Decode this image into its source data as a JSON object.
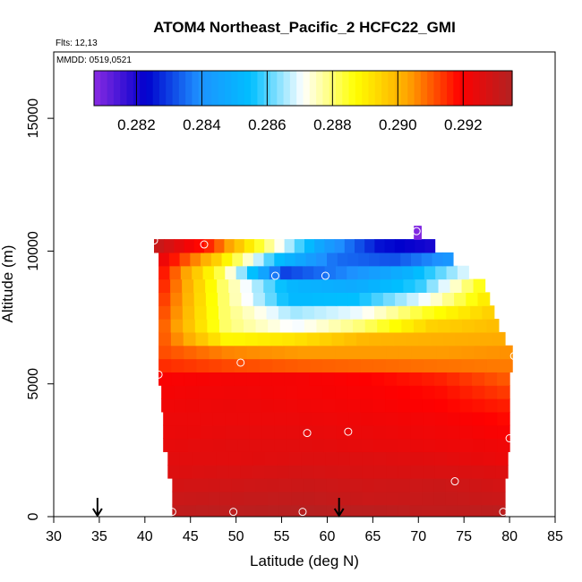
{
  "chart_data": {
    "type": "heatmap",
    "title": "ATOM4 Northeast_Pacific_2 HCFC22_GMI",
    "flights_label": "Flts: 12,13",
    "date_label": "MMDD: 0519,0521",
    "xlabel": "Latitude (deg N)",
    "ylabel": "Altitude (m)",
    "xlim": [
      30,
      85
    ],
    "ylim": [
      0,
      17500
    ],
    "x_ticks": [
      "30",
      "35",
      "40",
      "45",
      "50",
      "55",
      "60",
      "65",
      "70",
      "75",
      "80",
      "85"
    ],
    "y_ticks": [
      "0",
      "5000",
      "10000",
      "15000"
    ],
    "colorbar": {
      "range": [
        0.2807,
        0.2935
      ],
      "ticks": [
        "0.282",
        "0.284",
        "0.286",
        "0.288",
        "0.290",
        "0.292"
      ],
      "colors": [
        "#8a2be2",
        "#0000cd",
        "#1e90ff",
        "#00bfff",
        "#ffffff",
        "#ffff00",
        "#ffa500",
        "#ff0000",
        "#b22222"
      ]
    },
    "grid": false,
    "rows": [
      {
        "alt": 200,
        "lat_start": 43.0,
        "lat_end": 79.5,
        "values": [
          0.2932,
          0.2933,
          0.2934,
          0.2933,
          0.2932,
          0.2933
        ]
      },
      {
        "alt": 700,
        "lat_start": 43.0,
        "lat_end": 79.5,
        "values": [
          0.293,
          0.2931,
          0.2932,
          0.293,
          0.2931,
          0.293
        ]
      },
      {
        "alt": 1200,
        "lat_start": 43.0,
        "lat_end": 79.5,
        "values": [
          0.2928,
          0.2929,
          0.293,
          0.2929,
          0.293,
          0.2928
        ]
      },
      {
        "alt": 1700,
        "lat_start": 42.5,
        "lat_end": 79.8,
        "values": [
          0.2926,
          0.2927,
          0.2928,
          0.2927,
          0.2927,
          0.2926
        ]
      },
      {
        "alt": 2200,
        "lat_start": 42.5,
        "lat_end": 79.8,
        "values": [
          0.2925,
          0.2925,
          0.2926,
          0.2926,
          0.2925,
          0.2923
        ]
      },
      {
        "alt": 2700,
        "lat_start": 42.0,
        "lat_end": 80.0,
        "values": [
          0.2924,
          0.2925,
          0.2925,
          0.2924,
          0.2923,
          0.2922
        ]
      },
      {
        "alt": 3200,
        "lat_start": 42.0,
        "lat_end": 80.0,
        "values": [
          0.2923,
          0.2924,
          0.2924,
          0.2923,
          0.2922,
          0.292
        ]
      },
      {
        "alt": 3700,
        "lat_start": 42.0,
        "lat_end": 80.0,
        "values": [
          0.2923,
          0.2923,
          0.2923,
          0.2922,
          0.2921,
          0.2918
        ]
      },
      {
        "alt": 4200,
        "lat_start": 41.8,
        "lat_end": 80.0,
        "values": [
          0.2922,
          0.2923,
          0.2922,
          0.2921,
          0.2919,
          0.2916
        ]
      },
      {
        "alt": 4700,
        "lat_start": 41.8,
        "lat_end": 80.0,
        "values": [
          0.2921,
          0.2922,
          0.2921,
          0.292,
          0.2918,
          0.2913
        ]
      },
      {
        "alt": 5200,
        "lat_start": 41.5,
        "lat_end": 80.0,
        "values": [
          0.292,
          0.2921,
          0.2921,
          0.2919,
          0.2916,
          0.291
        ]
      },
      {
        "alt": 5700,
        "lat_start": 41.5,
        "lat_end": 80.3,
        "values": [
          0.2915,
          0.2912,
          0.291,
          0.2909,
          0.2908,
          0.2907
        ]
      },
      {
        "alt": 6200,
        "lat_start": 41.5,
        "lat_end": 80.3,
        "values": [
          0.2912,
          0.2906,
          0.2904,
          0.2904,
          0.2904,
          0.2905
        ]
      },
      {
        "alt": 6700,
        "lat_start": 41.5,
        "lat_end": 79.5,
        "values": [
          0.2912,
          0.2888,
          0.2892,
          0.29,
          0.2901,
          0.2902
        ]
      },
      {
        "alt": 7200,
        "lat_start": 41.5,
        "lat_end": 78.8,
        "values": [
          0.2912,
          0.288,
          0.287,
          0.288,
          0.2895,
          0.2899
        ]
      },
      {
        "alt": 7700,
        "lat_start": 41.5,
        "lat_end": 78.3,
        "values": [
          0.2914,
          0.288,
          0.2865,
          0.287,
          0.2885,
          0.2896
        ]
      },
      {
        "alt": 8200,
        "lat_start": 41.5,
        "lat_end": 77.8,
        "values": [
          0.2916,
          0.288,
          0.2853,
          0.2855,
          0.287,
          0.2892
        ]
      },
      {
        "alt": 8700,
        "lat_start": 41.5,
        "lat_end": 77.3,
        "values": [
          0.2918,
          0.288,
          0.2852,
          0.2848,
          0.2858,
          0.2888
        ]
      },
      {
        "alt": 9200,
        "lat_start": 41.5,
        "lat_end": 75.5,
        "values": [
          0.292,
          0.2882,
          0.283,
          0.2838,
          0.285,
          0.287
        ]
      },
      {
        "alt": 9700,
        "lat_start": 41.5,
        "lat_end": 73.8,
        "values": [
          0.2925,
          0.2895,
          0.2855,
          0.2835,
          0.2832,
          0.2842
        ]
      },
      {
        "alt": 10200,
        "lat_start": 41.0,
        "lat_end": 71.8,
        "values": [
          0.2932,
          0.2915,
          0.288,
          0.2845,
          0.2825,
          0.282
        ]
      },
      {
        "alt": 10700,
        "lat_start": 69.5,
        "lat_end": 70.3,
        "values": [
          0.2808
        ]
      }
    ],
    "points": [
      {
        "lat": 41.0,
        "alt": 10400
      },
      {
        "lat": 46.5,
        "alt": 10250
      },
      {
        "lat": 54.3,
        "alt": 9070
      },
      {
        "lat": 59.8,
        "alt": 9070
      },
      {
        "lat": 69.8,
        "alt": 10750
      },
      {
        "lat": 80.5,
        "alt": 6050
      },
      {
        "lat": 50.5,
        "alt": 5800
      },
      {
        "lat": 41.5,
        "alt": 5350
      },
      {
        "lat": 57.8,
        "alt": 3150
      },
      {
        "lat": 62.3,
        "alt": 3200
      },
      {
        "lat": 80.0,
        "alt": 2950
      },
      {
        "lat": 74.0,
        "alt": 1330
      },
      {
        "lat": 43.0,
        "alt": 180
      },
      {
        "lat": 49.7,
        "alt": 180
      },
      {
        "lat": 57.3,
        "alt": 180
      },
      {
        "lat": 79.3,
        "alt": 180
      }
    ],
    "markers": [
      {
        "lat": 34.8,
        "symbol": "down-arrow"
      },
      {
        "lat": 61.3,
        "symbol": "down-arrow"
      }
    ]
  }
}
